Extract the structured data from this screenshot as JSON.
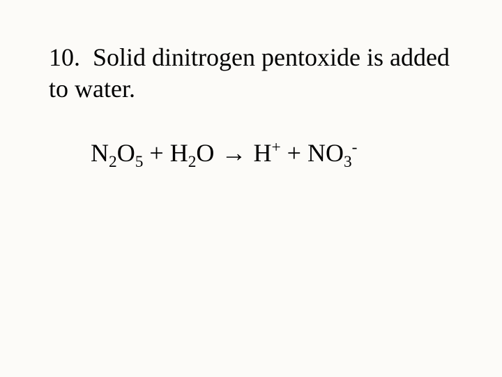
{
  "slide": {
    "background_color": "#fcfbf8",
    "text_color": "#000000",
    "font_family": "Times New Roman",
    "title": {
      "number": "10.",
      "text": "Solid dinitrogen pentoxide is added to water.",
      "fontsize": 36
    },
    "equation": {
      "fontsize": 36,
      "reactants": [
        {
          "base": "N",
          "sub": "2",
          "base2": "O",
          "sub2": "5"
        },
        {
          "base": "H",
          "sub": "2",
          "base2": "O",
          "sub2": ""
        }
      ],
      "arrow": "→",
      "products": [
        {
          "base": "H",
          "sup": "+",
          "sub": ""
        },
        {
          "base": "NO",
          "sub": "3",
          "sup": "-"
        }
      ],
      "plus": "+",
      "parts": {
        "r1_a": "N",
        "r1_as": "2",
        "r1_b": "O",
        "r1_bs": "5",
        "plus1": " + ",
        "r2_a": "H",
        "r2_as": "2",
        "r2_b": "O",
        "arrow": " → ",
        "p1_a": "H",
        "p1_sup": "+",
        "plus2": " + ",
        "p2_a": "NO",
        "p2_sub": "3",
        "p2_sup": "-"
      }
    }
  }
}
